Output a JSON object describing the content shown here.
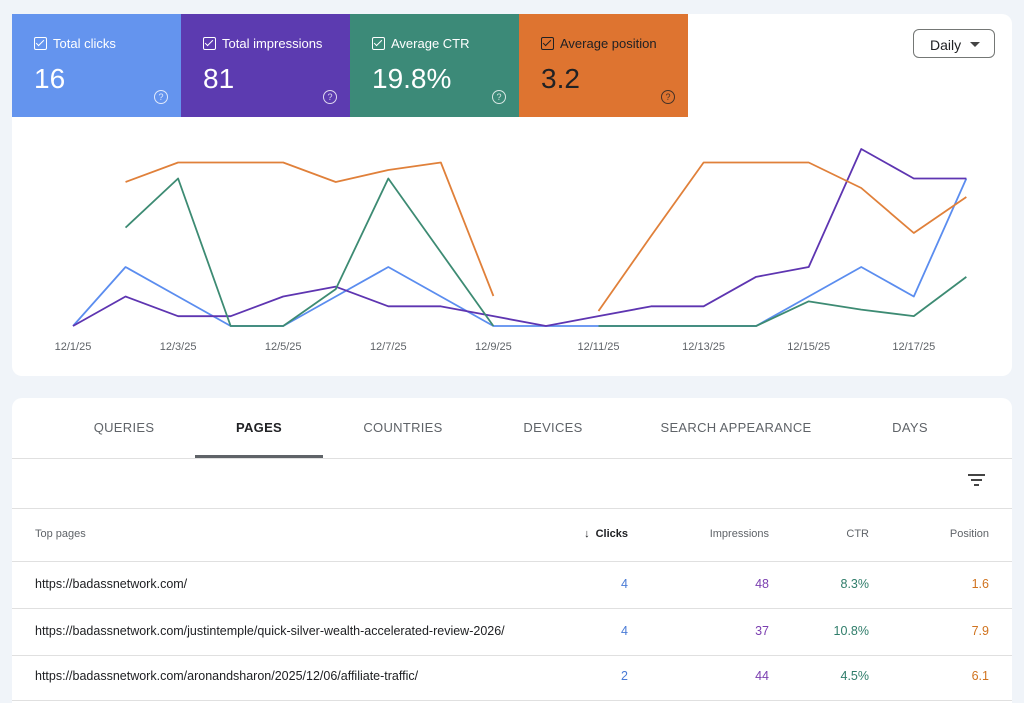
{
  "metric_cards": [
    {
      "label": "Total clicks",
      "value": "16",
      "color": "#6494ee",
      "text_color": "#ffffff"
    },
    {
      "label": "Total impressions",
      "value": "81",
      "color": "#5c3bb0",
      "text_color": "#ffffff"
    },
    {
      "label": "Average CTR",
      "value": "19.8%",
      "color": "#3c8a78",
      "text_color": "#ffffff"
    },
    {
      "label": "Average position",
      "value": "3.2",
      "color": "#de7430",
      "text_color": "#202124"
    }
  ],
  "dropdown": "Daily",
  "chart_data": {
    "type": "line",
    "categories": [
      "12/1/25",
      null,
      "12/3/25",
      null,
      "12/5/25",
      null,
      "12/7/25",
      null,
      "12/9/25",
      null,
      "12/11/25",
      null,
      "12/13/25",
      null,
      "12/15/25",
      null,
      "12/17/25",
      null
    ],
    "series": [
      {
        "color": "#5b8def",
        "ylim": [
          0,
          6
        ],
        "values": [
          0,
          2,
          1,
          0,
          0,
          1,
          2,
          1,
          0,
          0,
          0,
          0,
          0,
          0,
          1,
          2,
          1,
          5
        ]
      },
      {
        "color": "#5e35b1",
        "ylim": [
          0,
          18
        ],
        "values": [
          0,
          3,
          1,
          1,
          3,
          4,
          2,
          2,
          1,
          0,
          1,
          2,
          2,
          5,
          6,
          18,
          15,
          15
        ]
      },
      {
        "color": "#3d8b73",
        "ylim": [
          0,
          120
        ],
        "values": [
          null,
          66.7,
          100,
          0,
          0,
          25,
          100,
          50,
          0,
          null,
          0,
          0,
          0,
          0,
          16.7,
          11.1,
          6.7,
          33.3
        ]
      },
      {
        "color": "#e0803a",
        "ylim": [
          11.9,
          0.1
        ],
        "values": [
          null,
          2.3,
          1,
          1,
          1,
          2.3,
          1.5,
          1,
          9.9,
          null,
          10.9,
          5.9,
          1,
          1,
          1,
          2.7,
          5.7,
          3.3
        ]
      }
    ]
  },
  "tabs": [
    "QUERIES",
    "PAGES",
    "COUNTRIES",
    "DEVICES",
    "SEARCH APPEARANCE",
    "DAYS"
  ],
  "active_tab": 1,
  "table": {
    "columns": [
      "Top pages",
      "Clicks",
      "Impressions",
      "CTR",
      "Position"
    ],
    "sort_column": 1,
    "column_colors": [
      "#202124",
      "#4a7bd6",
      "#7b3fb0",
      "#2f7d6a",
      "#d0731f"
    ],
    "rows": [
      [
        "https://badassnetwork.com/",
        "4",
        "48",
        "8.3%",
        "1.6"
      ],
      [
        "https://badassnetwork.com/justintemple/quick-silver-wealth-accelerated-review-2026/",
        "4",
        "37",
        "10.8%",
        "7.9"
      ],
      [
        "https://badassnetwork.com/aronandsharon/2025/12/06/affiliate-traffic/",
        "2",
        "44",
        "4.5%",
        "6.1"
      ]
    ]
  }
}
